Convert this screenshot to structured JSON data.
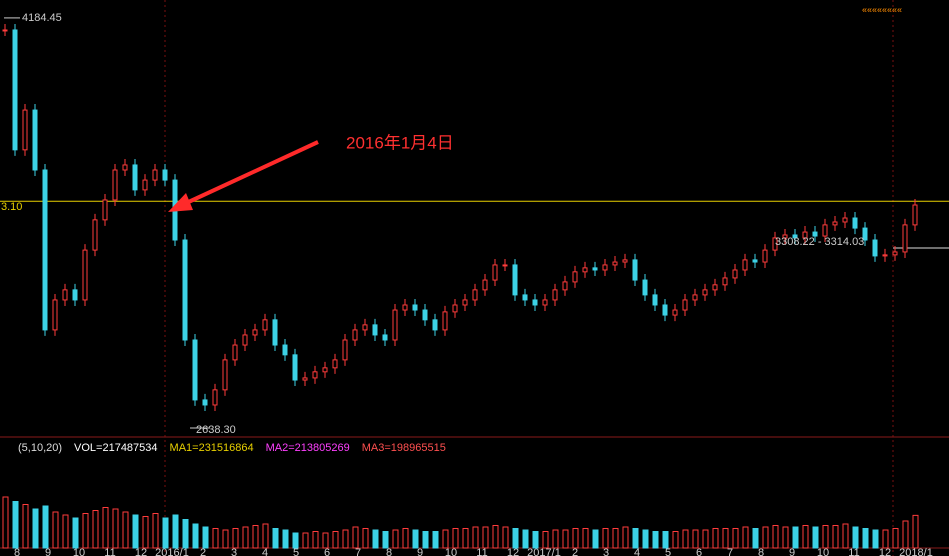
{
  "chart_data": {
    "type": "candlestick",
    "close": [
      4139,
      3687,
      3837,
      3611,
      3008,
      3121,
      3159,
      3121,
      3309,
      3423,
      3498,
      3611,
      3630,
      3536,
      3573,
      3611,
      3573,
      3347,
      2970,
      2744,
      2725,
      2782,
      2895,
      2951,
      2989,
      3008,
      3046,
      2951,
      2914,
      2819,
      2827,
      2850,
      2865,
      2895,
      2970,
      3008,
      3027,
      2989,
      2970,
      3083,
      3102,
      3083,
      3046,
      3008,
      3076,
      3102,
      3121,
      3159,
      3196,
      3253,
      3253,
      3140,
      3121,
      3102,
      3121,
      3159,
      3189,
      3227,
      3242,
      3234,
      3253,
      3264,
      3272,
      3196,
      3140,
      3102,
      3064,
      3083,
      3121,
      3140,
      3159,
      3178,
      3204,
      3234,
      3272,
      3264,
      3309,
      3355,
      3366,
      3355,
      3377,
      3362,
      3404,
      3415,
      3430,
      3392,
      3347,
      3287,
      3291,
      3302,
      3404,
      3479
    ],
    "volume": [
      340000000.0,
      310000000.0,
      290000000.0,
      260000000.0,
      280000000.0,
      240000000.0,
      220000000.0,
      200000000.0,
      230000000.0,
      250000000.0,
      270000000.0,
      260000000.0,
      240000000.0,
      220000000.0,
      210000000.0,
      230000000.0,
      200000000.0,
      220000000.0,
      190000000.0,
      160000000.0,
      140000000.0,
      130000000.0,
      120000000.0,
      130000000.0,
      140000000.0,
      150000000.0,
      160000000.0,
      130000000.0,
      120000000.0,
      100000000.0,
      100000000.0,
      110000000.0,
      100000000.0,
      110000000.0,
      120000000.0,
      140000000.0,
      130000000.0,
      120000000.0,
      110000000.0,
      120000000.0,
      130000000.0,
      120000000.0,
      110000000.0,
      110000000.0,
      120000000.0,
      130000000.0,
      130000000.0,
      140000000.0,
      140000000.0,
      150000000.0,
      140000000.0,
      130000000.0,
      120000000.0,
      110000000.0,
      110000000.0,
      120000000.0,
      120000000.0,
      130000000.0,
      130000000.0,
      120000000.0,
      130000000.0,
      130000000.0,
      140000000.0,
      130000000.0,
      120000000.0,
      110000000.0,
      110000000.0,
      110000000.0,
      120000000.0,
      120000000.0,
      120000000.0,
      130000000.0,
      130000000.0,
      130000000.0,
      140000000.0,
      130000000.0,
      140000000.0,
      150000000.0,
      140000000.0,
      140000000.0,
      150000000.0,
      140000000.0,
      150000000.0,
      150000000.0,
      160000000.0,
      140000000.0,
      130000000.0,
      120000000.0,
      120000000.0,
      130000000.0,
      180000000.0,
      217487534.0
    ],
    "ylim": [
      2608,
      4252
    ],
    "vlim": [
      0,
      600000000
    ],
    "ref_level": {
      "value": 3493.1,
      "label": "3.10"
    },
    "annotations": [
      {
        "text": "4184.45",
        "value": 4184.45
      },
      {
        "text": "2638.30",
        "value": 2638.3
      },
      {
        "text": "3308.22 - 3314.03"
      },
      {
        "text": "2016年1月4日"
      }
    ],
    "volume_header": [
      "(5,10,20)",
      "VOL=217487534",
      "MA1=231516864",
      "MA2=213805269",
      "MA3=198965515"
    ],
    "x_labels": [
      "8",
      "9",
      "10",
      "11",
      "12",
      "2016/1",
      "2",
      "3",
      "4",
      "5",
      "6",
      "7",
      "8",
      "9",
      "10",
      "11",
      "12",
      "2017/1",
      "2",
      "3",
      "4",
      "5",
      "6",
      "7",
      "8",
      "9",
      "10",
      "11",
      "12",
      "2018/1"
    ]
  }
}
